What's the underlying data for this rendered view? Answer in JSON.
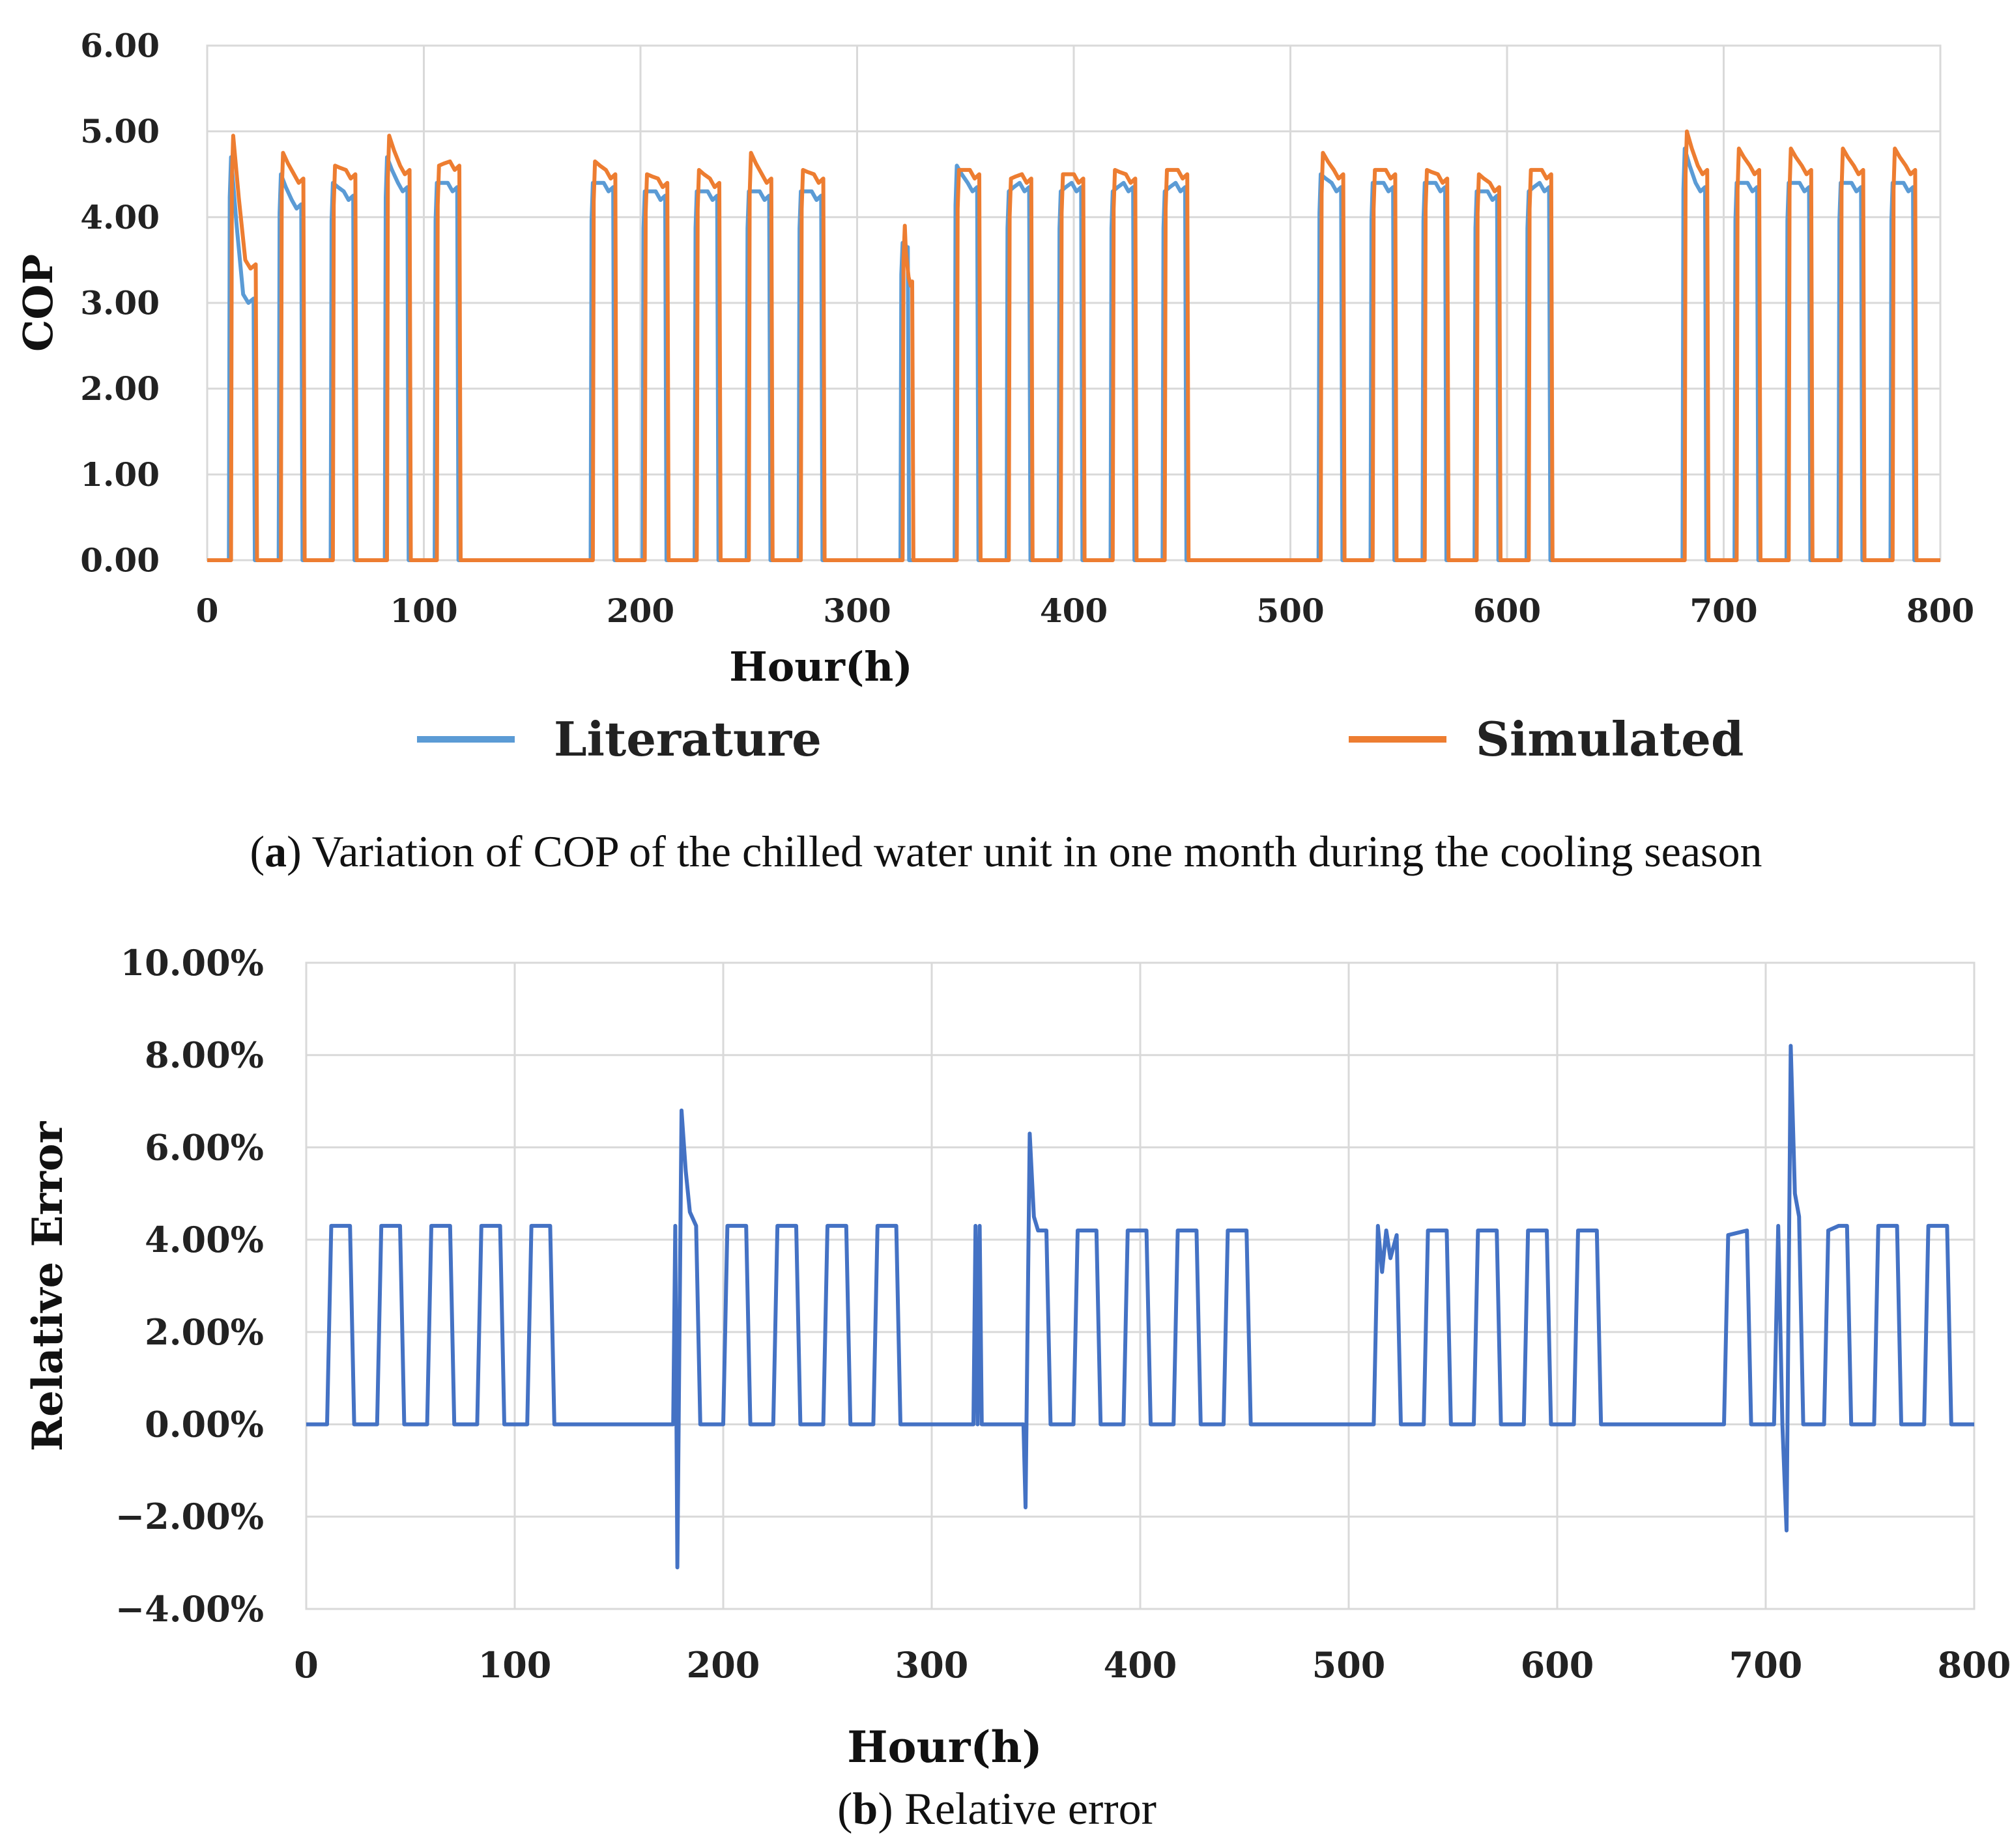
{
  "chart_data": [
    {
      "type": "line",
      "id": "a",
      "title": "",
      "xlabel": "Hour(h)",
      "ylabel": "COP",
      "xlim": [
        0,
        800
      ],
      "ylim": [
        0,
        6
      ],
      "xticks": [
        "0",
        "100",
        "200",
        "300",
        "400",
        "500",
        "600",
        "700",
        "800"
      ],
      "yticks": [
        "0.00",
        "1.00",
        "2.00",
        "3.00",
        "4.00",
        "5.00",
        "6.00"
      ],
      "grid": true,
      "legend_position": "bottom",
      "caption_label": "a",
      "caption_text": "Variation of COP of the chilled water unit in one month during the cooling season",
      "series": [
        {
          "name": "Literature",
          "color": "#5b9bd5",
          "blocks": [
            [
              10,
              22,
              4.7,
              3.0
            ],
            [
              33,
              44,
              4.5,
              4.1
            ],
            [
              57,
              68,
              4.4,
              4.2
            ],
            [
              82,
              93,
              4.7,
              4.3
            ],
            [
              105,
              116,
              4.4,
              4.3
            ],
            [
              177,
              188,
              4.4,
              4.3
            ],
            [
              201,
              212,
              4.3,
              4.2
            ],
            [
              225,
              236,
              4.3,
              4.2
            ],
            [
              249,
              260,
              4.3,
              4.2
            ],
            [
              273,
              284,
              4.3,
              4.2
            ],
            [
              320,
              324,
              3.7,
              3.6
            ],
            [
              345,
              356,
              4.6,
              4.3
            ],
            [
              369,
              380,
              4.3,
              4.3
            ],
            [
              393,
              404,
              4.3,
              4.3
            ],
            [
              417,
              428,
              4.3,
              4.3
            ],
            [
              441,
              452,
              4.3,
              4.3
            ],
            [
              513,
              524,
              4.5,
              4.3
            ],
            [
              537,
              548,
              4.4,
              4.3
            ],
            [
              561,
              572,
              4.4,
              4.3
            ],
            [
              585,
              596,
              4.3,
              4.2
            ],
            [
              609,
              620,
              4.3,
              4.3
            ],
            [
              681,
              692,
              4.8,
              4.3
            ],
            [
              705,
              716,
              4.4,
              4.3
            ],
            [
              729,
              740,
              4.4,
              4.3
            ],
            [
              753,
              764,
              4.4,
              4.3
            ],
            [
              777,
              788,
              4.4,
              4.3
            ]
          ]
        },
        {
          "name": "Simulated",
          "color": "#ed7d31",
          "blocks": [
            [
              11,
              23,
              4.95,
              3.4
            ],
            [
              34,
              45,
              4.75,
              4.4
            ],
            [
              58,
              69,
              4.6,
              4.45
            ],
            [
              83,
              94,
              4.95,
              4.5
            ],
            [
              106,
              117,
              4.6,
              4.55
            ],
            [
              178,
              189,
              4.65,
              4.45
            ],
            [
              202,
              213,
              4.5,
              4.35
            ],
            [
              226,
              237,
              4.55,
              4.35
            ],
            [
              250,
              261,
              4.75,
              4.4
            ],
            [
              274,
              285,
              4.55,
              4.4
            ],
            [
              321,
              326,
              3.9,
              3.2
            ],
            [
              346,
              357,
              4.55,
              4.45
            ],
            [
              370,
              381,
              4.45,
              4.4
            ],
            [
              394,
              405,
              4.5,
              4.4
            ],
            [
              418,
              429,
              4.55,
              4.4
            ],
            [
              442,
              453,
              4.55,
              4.45
            ],
            [
              514,
              525,
              4.75,
              4.45
            ],
            [
              538,
              549,
              4.55,
              4.45
            ],
            [
              562,
              573,
              4.55,
              4.4
            ],
            [
              586,
              597,
              4.5,
              4.3
            ],
            [
              610,
              621,
              4.55,
              4.45
            ],
            [
              682,
              693,
              5.0,
              4.5
            ],
            [
              706,
              717,
              4.8,
              4.5
            ],
            [
              730,
              741,
              4.8,
              4.5
            ],
            [
              754,
              765,
              4.8,
              4.5
            ],
            [
              778,
              789,
              4.8,
              4.5
            ]
          ]
        }
      ]
    },
    {
      "type": "line",
      "id": "b",
      "title": "",
      "xlabel": "Hour(h)",
      "ylabel": "Relative Error",
      "xlim": [
        0,
        800
      ],
      "ylim": [
        -4,
        10
      ],
      "xticks": [
        "0",
        "100",
        "200",
        "300",
        "400",
        "500",
        "600",
        "700",
        "800"
      ],
      "yticks": [
        "−4.00%",
        "−2.00%",
        "0.00%",
        "2.00%",
        "4.00%",
        "6.00%",
        "8.00%",
        "10.00%"
      ],
      "grid": true,
      "caption_label": "b",
      "caption_text": "Relative error",
      "series": [
        {
          "name": "Relative Error",
          "color": "#4472c4",
          "points": [
            [
              0,
              0
            ],
            [
              10,
              0
            ],
            [
              12,
              4.3
            ],
            [
              21,
              4.3
            ],
            [
              23,
              0
            ],
            [
              34,
              0
            ],
            [
              36,
              4.3
            ],
            [
              45,
              4.3
            ],
            [
              47,
              0
            ],
            [
              58,
              0
            ],
            [
              60,
              4.3
            ],
            [
              69,
              4.3
            ],
            [
              71,
              0
            ],
            [
              82,
              0
            ],
            [
              84,
              4.3
            ],
            [
              93,
              4.3
            ],
            [
              95,
              0
            ],
            [
              106,
              0
            ],
            [
              108,
              4.3
            ],
            [
              117,
              4.3
            ],
            [
              119,
              0
            ],
            [
              176,
              0
            ],
            [
              177,
              4.3
            ],
            [
              178,
              -3.1
            ],
            [
              180,
              6.8
            ],
            [
              182,
              5.5
            ],
            [
              184,
              4.6
            ],
            [
              187,
              4.3
            ],
            [
              189,
              0
            ],
            [
              200,
              0
            ],
            [
              202,
              4.3
            ],
            [
              211,
              4.3
            ],
            [
              213,
              0
            ],
            [
              224,
              0
            ],
            [
              226,
              4.3
            ],
            [
              235,
              4.3
            ],
            [
              237,
              0
            ],
            [
              248,
              0
            ],
            [
              250,
              4.3
            ],
            [
              259,
              4.3
            ],
            [
              261,
              0
            ],
            [
              272,
              0
            ],
            [
              274,
              4.3
            ],
            [
              283,
              4.3
            ],
            [
              285,
              0
            ],
            [
              320,
              0
            ],
            [
              321,
              4.3
            ],
            [
              322,
              0
            ],
            [
              323,
              4.3
            ],
            [
              324,
              0
            ],
            [
              344,
              0
            ],
            [
              345,
              -1.8
            ],
            [
              347,
              6.3
            ],
            [
              349,
              4.5
            ],
            [
              351,
              4.2
            ],
            [
              355,
              4.2
            ],
            [
              357,
              0
            ],
            [
              368,
              0
            ],
            [
              370,
              4.2
            ],
            [
              379,
              4.2
            ],
            [
              381,
              0
            ],
            [
              392,
              0
            ],
            [
              394,
              4.2
            ],
            [
              403,
              4.2
            ],
            [
              405,
              0
            ],
            [
              416,
              0
            ],
            [
              418,
              4.2
            ],
            [
              427,
              4.2
            ],
            [
              429,
              0
            ],
            [
              440,
              0
            ],
            [
              442,
              4.2
            ],
            [
              451,
              4.2
            ],
            [
              453,
              0
            ],
            [
              512,
              0
            ],
            [
              514,
              4.3
            ],
            [
              516,
              3.3
            ],
            [
              518,
              4.2
            ],
            [
              520,
              3.6
            ],
            [
              523,
              4.1
            ],
            [
              525,
              0
            ],
            [
              536,
              0
            ],
            [
              538,
              4.2
            ],
            [
              547,
              4.2
            ],
            [
              549,
              0
            ],
            [
              560,
              0
            ],
            [
              562,
              4.2
            ],
            [
              571,
              4.2
            ],
            [
              573,
              0
            ],
            [
              584,
              0
            ],
            [
              586,
              4.2
            ],
            [
              595,
              4.2
            ],
            [
              597,
              0
            ],
            [
              608,
              0
            ],
            [
              610,
              4.2
            ],
            [
              619,
              4.2
            ],
            [
              621,
              0
            ],
            [
              680,
              0
            ],
            [
              682,
              4.1
            ],
            [
              691,
              4.2
            ],
            [
              693,
              0
            ],
            [
              704,
              0
            ],
            [
              706,
              4.3
            ],
            [
              708,
              0
            ],
            [
              710,
              -2.3
            ],
            [
              712,
              8.2
            ],
            [
              714,
              5.0
            ],
            [
              716,
              4.5
            ],
            [
              718,
              0
            ],
            [
              728,
              0
            ],
            [
              730,
              4.2
            ],
            [
              735,
              4.3
            ],
            [
              739,
              4.3
            ],
            [
              741,
              0
            ],
            [
              752,
              0
            ],
            [
              754,
              4.3
            ],
            [
              763,
              4.3
            ],
            [
              765,
              0
            ],
            [
              776,
              0
            ],
            [
              778,
              4.3
            ],
            [
              787,
              4.3
            ],
            [
              789,
              0
            ],
            [
              800,
              0
            ]
          ]
        }
      ]
    }
  ]
}
